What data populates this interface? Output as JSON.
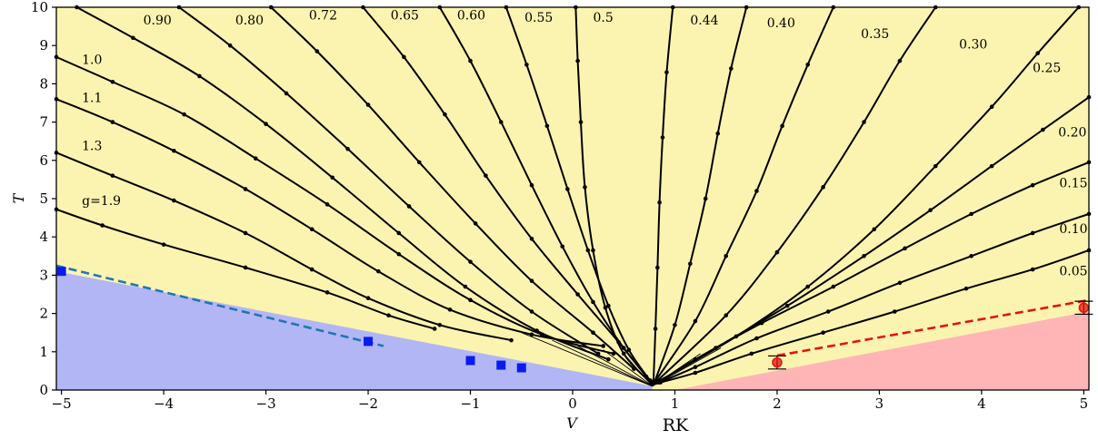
{
  "chart_data": {
    "type": "line",
    "xlabel": "V",
    "ylabel": "T",
    "x_annotation": "RK",
    "xlim": [
      -5.05,
      5.05
    ],
    "ylim": [
      0,
      10
    ],
    "xticks": [
      "−5",
      "−4",
      "−3",
      "−2",
      "−1",
      "0",
      "1",
      "2",
      "3",
      "4",
      "5"
    ],
    "yticks": [
      "0",
      "1",
      "2",
      "3",
      "4",
      "5",
      "6",
      "7",
      "8",
      "9",
      "10"
    ],
    "grid": false,
    "focus_point": [
      0.78,
      0.1
    ],
    "regions": [
      {
        "name": "blue-phase",
        "color": "#b3b6f4",
        "points": [
          [
            -5.05,
            0
          ],
          [
            -5.05,
            3.1
          ],
          [
            0.78,
            0.1
          ],
          [
            0.78,
            0
          ]
        ]
      },
      {
        "name": "red-phase",
        "color": "#ffb5b5",
        "points": [
          [
            1.0,
            0
          ],
          [
            5.05,
            2.05
          ],
          [
            5.05,
            0
          ]
        ]
      },
      {
        "name": "background",
        "color": "#fbf4b0"
      }
    ],
    "boundary_fit_left": {
      "color": "#1f77b4",
      "x": [
        -5.05,
        -1.85
      ],
      "y": [
        3.25,
        1.15
      ]
    },
    "boundary_fit_right": {
      "color": "#e8120c",
      "x": [
        2.0,
        5.05
      ],
      "y": [
        0.9,
        2.35
      ]
    },
    "blue_markers": {
      "color": "#0a1bf0",
      "x": [
        -5.0,
        -2.0,
        -1.0,
        -0.7,
        -0.5
      ],
      "y": [
        3.1,
        1.27,
        0.77,
        0.65,
        0.58
      ]
    },
    "red_markers": {
      "color": "#e8120c",
      "x": [
        2.0,
        5.0
      ],
      "y": [
        0.72,
        2.15
      ],
      "yerr": [
        0.17,
        0.17
      ]
    },
    "curve_labels": [
      {
        "text": "0.90",
        "x": -4.2,
        "y": 9.55
      },
      {
        "text": "0.80",
        "x": -3.3,
        "y": 9.55
      },
      {
        "text": "0.72",
        "x": -2.58,
        "y": 9.68
      },
      {
        "text": "0.65",
        "x": -1.78,
        "y": 9.68
      },
      {
        "text": "0.60",
        "x": -1.13,
        "y": 9.68
      },
      {
        "text": "0.55",
        "x": -0.47,
        "y": 9.62
      },
      {
        "text": "0.5",
        "x": 0.2,
        "y": 9.62
      },
      {
        "text": "0.44",
        "x": 1.15,
        "y": 9.55
      },
      {
        "text": "0.40",
        "x": 1.9,
        "y": 9.48
      },
      {
        "text": "0.35",
        "x": 2.82,
        "y": 9.2
      },
      {
        "text": "0.30",
        "x": 3.78,
        "y": 8.92
      },
      {
        "text": "0.25",
        "x": 4.5,
        "y": 8.3
      },
      {
        "text": "0.20",
        "x": 4.75,
        "y": 6.62
      },
      {
        "text": "0.15",
        "x": 4.76,
        "y": 5.3
      },
      {
        "text": "0.10",
        "x": 4.76,
        "y": 4.1
      },
      {
        "text": "0.05",
        "x": 4.76,
        "y": 3.0
      },
      {
        "text": "1.0",
        "x": -4.8,
        "y": 8.52
      },
      {
        "text": "1.1",
        "x": -4.8,
        "y": 7.52
      },
      {
        "text": "1.3",
        "x": -4.8,
        "y": 6.27
      },
      {
        "text": "g=1.9",
        "x": -4.8,
        "y": 4.83
      }
    ],
    "series": [
      {
        "name": "g=1.9",
        "x": [
          -5.05,
          -4.6,
          -4.0,
          -3.2,
          -2.4,
          -1.8,
          -1.35
        ],
        "y": [
          4.72,
          4.3,
          3.8,
          3.2,
          2.55,
          1.95,
          1.6
        ]
      },
      {
        "name": "1.3",
        "x": [
          -5.05,
          -4.5,
          -3.9,
          -3.2,
          -2.55,
          -2.0,
          -1.3,
          -0.6
        ],
        "y": [
          6.2,
          5.6,
          4.95,
          4.1,
          3.15,
          2.4,
          1.7,
          1.3
        ]
      },
      {
        "name": "1.1",
        "x": [
          -5.05,
          -4.5,
          -3.9,
          -3.2,
          -2.55,
          -1.9,
          -1.2,
          -0.4,
          0.3
        ],
        "y": [
          7.6,
          7.0,
          6.25,
          5.25,
          4.2,
          3.1,
          2.1,
          1.45,
          1.15
        ]
      },
      {
        "name": "1.0",
        "x": [
          -5.05,
          -4.5,
          -3.8,
          -3.1,
          -2.4,
          -1.7,
          -1.0,
          -0.3,
          0.4
        ],
        "y": [
          8.7,
          8.05,
          7.2,
          6.05,
          4.85,
          3.55,
          2.35,
          1.45,
          0.95
        ]
      },
      {
        "name": "0.90",
        "x": [
          -4.85,
          -4.3,
          -3.65,
          -3.0,
          -2.35,
          -1.7,
          -1.05,
          -0.35,
          0.35
        ],
        "y": [
          10.0,
          9.2,
          8.2,
          6.95,
          5.55,
          4.1,
          2.7,
          1.55,
          0.8
        ]
      },
      {
        "name": "0.80",
        "x": [
          -3.85,
          -3.35,
          -2.8,
          -2.2,
          -1.6,
          -1.0,
          -0.4,
          0.25
        ],
        "y": [
          10.0,
          9.0,
          7.75,
          6.3,
          4.8,
          3.35,
          2.05,
          0.95
        ]
      },
      {
        "name": "0.72",
        "x": [
          -2.95,
          -2.5,
          -2.0,
          -1.5,
          -0.95,
          -0.4,
          0.2,
          0.6
        ],
        "y": [
          10.0,
          8.85,
          7.45,
          5.95,
          4.35,
          2.85,
          1.5,
          0.55
        ]
      },
      {
        "name": "0.65",
        "x": [
          -2.05,
          -1.65,
          -1.25,
          -0.85,
          -0.4,
          0.05,
          0.45,
          0.72
        ],
        "y": [
          10.0,
          8.7,
          7.2,
          5.6,
          3.95,
          2.5,
          1.25,
          0.35
        ]
      },
      {
        "name": "0.60",
        "x": [
          -1.3,
          -1.0,
          -0.7,
          -0.4,
          -0.1,
          0.2,
          0.5,
          0.76
        ],
        "y": [
          10.0,
          8.6,
          7.0,
          5.35,
          3.75,
          2.3,
          1.1,
          0.25
        ]
      },
      {
        "name": "0.55",
        "x": [
          -0.65,
          -0.45,
          -0.25,
          -0.05,
          0.15,
          0.35,
          0.55,
          0.77
        ],
        "y": [
          10.0,
          8.5,
          6.9,
          5.25,
          3.65,
          2.2,
          1.05,
          0.2
        ]
      },
      {
        "name": "0.5",
        "x": [
          0.03,
          0.05,
          0.08,
          0.12,
          0.2,
          0.32,
          0.5,
          0.78
        ],
        "y": [
          10.0,
          8.6,
          7.0,
          5.3,
          3.65,
          2.15,
          0.95,
          0.15
        ]
      },
      {
        "name": "0.44",
        "x": [
          0.98,
          0.92,
          0.88,
          0.85,
          0.83,
          0.81,
          0.79
        ],
        "y": [
          10.0,
          8.3,
          6.6,
          4.9,
          3.2,
          1.6,
          0.2
        ]
      },
      {
        "name": "0.40",
        "x": [
          1.7,
          1.55,
          1.42,
          1.3,
          1.15,
          1.0,
          0.8
        ],
        "y": [
          10.0,
          8.4,
          6.7,
          5.0,
          3.3,
          1.7,
          0.2
        ]
      },
      {
        "name": "0.35",
        "x": [
          2.55,
          2.3,
          2.05,
          1.8,
          1.5,
          1.2,
          0.8
        ],
        "y": [
          10.0,
          8.5,
          6.9,
          5.2,
          3.5,
          1.8,
          0.2
        ]
      },
      {
        "name": "0.30",
        "x": [
          3.55,
          3.2,
          2.85,
          2.45,
          2.0,
          1.5,
          0.81
        ],
        "y": [
          10.0,
          8.6,
          7.0,
          5.3,
          3.6,
          1.95,
          0.2
        ]
      },
      {
        "name": "0.25",
        "x": [
          4.95,
          4.55,
          4.1,
          3.55,
          2.95,
          2.3,
          1.6,
          0.82
        ],
        "y": [
          10.0,
          8.8,
          7.4,
          5.85,
          4.2,
          2.7,
          1.4,
          0.2
        ]
      },
      {
        "name": "0.20",
        "x": [
          5.05,
          4.6,
          4.1,
          3.5,
          2.85,
          2.1,
          1.4,
          0.83
        ],
        "y": [
          7.65,
          6.8,
          5.85,
          4.7,
          3.5,
          2.2,
          1.1,
          0.2
        ]
      },
      {
        "name": "0.15",
        "x": [
          5.05,
          4.5,
          3.9,
          3.25,
          2.55,
          1.85,
          1.2,
          0.84
        ],
        "y": [
          5.95,
          5.35,
          4.6,
          3.7,
          2.7,
          1.75,
          0.8,
          0.2
        ]
      },
      {
        "name": "0.10",
        "x": [
          5.05,
          4.5,
          3.9,
          3.2,
          2.5,
          1.8,
          1.2,
          0.85
        ],
        "y": [
          4.6,
          4.1,
          3.5,
          2.8,
          2.05,
          1.35,
          0.6,
          0.2
        ]
      },
      {
        "name": "0.05",
        "x": [
          5.05,
          4.5,
          3.85,
          3.15,
          2.45,
          1.75,
          1.2,
          0.86
        ],
        "y": [
          3.65,
          3.15,
          2.65,
          2.05,
          1.5,
          0.95,
          0.45,
          0.2
        ]
      }
    ]
  }
}
